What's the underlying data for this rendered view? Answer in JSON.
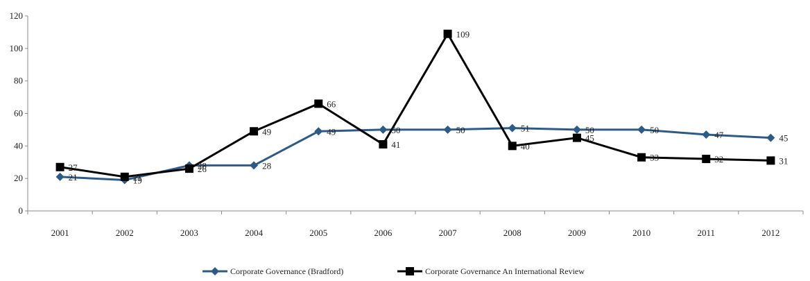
{
  "chart_data": {
    "type": "line",
    "title": "",
    "xlabel": "",
    "ylabel": "",
    "ylim": [
      0,
      120
    ],
    "y_ticks": [
      "0",
      "20",
      "40",
      "60",
      "80",
      "100",
      "120"
    ],
    "categories": [
      "2001",
      "2002",
      "2003",
      "2004",
      "2005",
      "2006",
      "2007",
      "2008",
      "2009",
      "2010",
      "2011",
      "2012"
    ],
    "grid": false,
    "legend_position": "bottom",
    "series": [
      {
        "name": "Corporate Governance (Bradford)",
        "marker": "diamond",
        "color": "#2E5A88",
        "values": [
          21,
          19,
          28,
          28,
          49,
          50,
          50,
          51,
          50,
          50,
          47,
          45
        ],
        "labels": [
          "21",
          "19",
          "28",
          "28",
          "49",
          "50",
          "50",
          "51",
          "50",
          "50",
          "47",
          "45"
        ]
      },
      {
        "name": "Corporate Governance  An International Review",
        "marker": "square",
        "color": "#000000",
        "values": [
          27,
          21,
          26,
          49,
          66,
          41,
          109,
          40,
          45,
          33,
          32,
          31
        ],
        "labels": [
          "27",
          "21",
          "26",
          "49",
          "66",
          "41",
          "109",
          "40",
          "45",
          "33",
          "32",
          "31"
        ]
      }
    ]
  }
}
